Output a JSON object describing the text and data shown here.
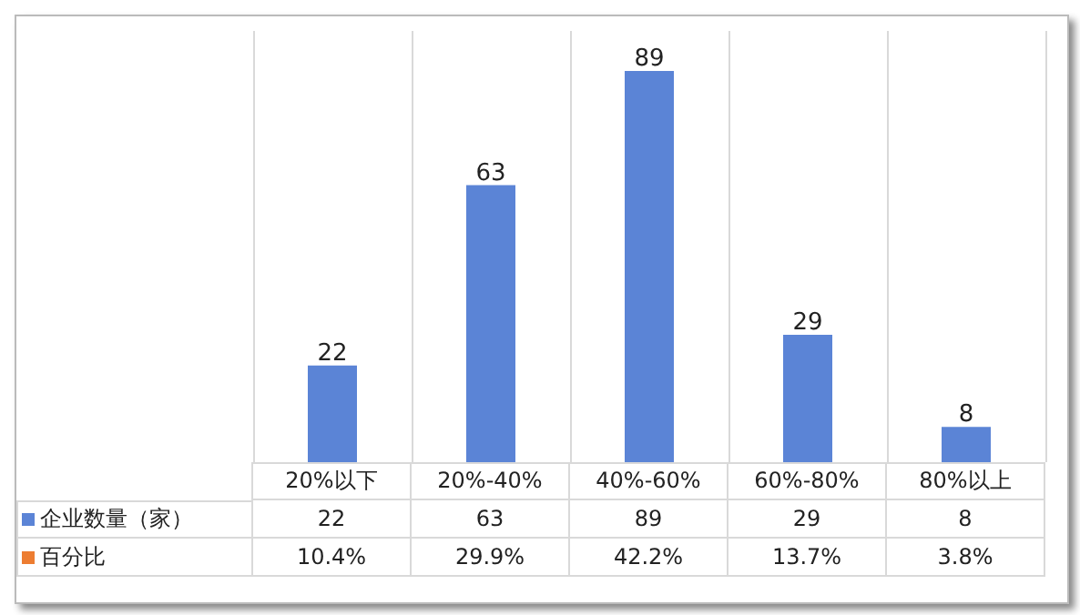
{
  "chart_data": {
    "type": "bar",
    "categories": [
      "20%以下",
      "20%-40%",
      "40%-60%",
      "60%-80%",
      "80%以上"
    ],
    "series": [
      {
        "name": "企业数量（家）",
        "color": "#5b84d6",
        "values": [
          22,
          63,
          89,
          29,
          8
        ],
        "value_labels": [
          "22",
          "63",
          "89",
          "29",
          "8"
        ]
      },
      {
        "name": "百分比",
        "color": "#ed7d31",
        "values": [
          null,
          null,
          null,
          null,
          null
        ],
        "value_labels": [
          "10.4%",
          "29.9%",
          "42.2%",
          "13.7%",
          "3.8%"
        ]
      }
    ],
    "data_labels": true,
    "grid": "x",
    "legend": "bottom left"
  }
}
